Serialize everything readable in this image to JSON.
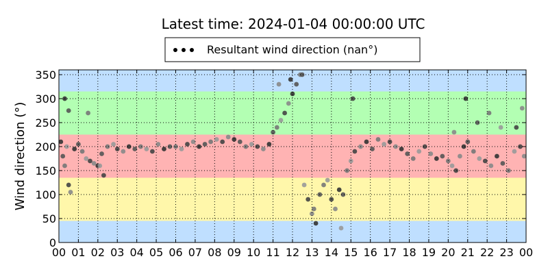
{
  "chart_data": {
    "type": "scatter",
    "title": "Latest time: 2024-01-04 00:00:00 UTC",
    "ylabel": "Wind direction (°)",
    "xlabel": "",
    "xlim": [
      0,
      24
    ],
    "ylim": [
      0,
      360
    ],
    "x_unit": "hour of day (UTC)",
    "x_ticks": [
      0,
      1,
      2,
      3,
      4,
      5,
      6,
      7,
      8,
      9,
      10,
      11,
      12,
      13,
      14,
      15,
      16,
      17,
      18,
      19,
      20,
      21,
      22,
      23,
      24
    ],
    "x_tick_labels": [
      "00",
      "01",
      "02",
      "03",
      "04",
      "05",
      "06",
      "07",
      "08",
      "09",
      "10",
      "11",
      "12",
      "13",
      "14",
      "15",
      "16",
      "17",
      "18",
      "19",
      "20",
      "21",
      "22",
      "23",
      "00"
    ],
    "y_ticks": [
      0,
      50,
      100,
      150,
      200,
      250,
      300,
      350
    ],
    "grid": true,
    "legend": {
      "position": "top-center",
      "entries": [
        "Resultant wind direction (nan°)"
      ]
    },
    "background_bands": [
      {
        "from": 0,
        "to": 45,
        "color": "#bfdfff"
      },
      {
        "from": 45,
        "to": 135,
        "color": "#fff7aa"
      },
      {
        "from": 135,
        "to": 225,
        "color": "#ffb3b3"
      },
      {
        "from": 225,
        "to": 315,
        "color": "#b3ffb3"
      },
      {
        "from": 315,
        "to": 360,
        "color": "#bfdfff"
      }
    ],
    "series": [
      {
        "name": "Resultant wind direction (nan°)",
        "color": "#555555",
        "x": [
          0.1,
          0.2,
          0.3,
          0.4,
          0.5,
          0.6,
          0.8,
          1.0,
          1.2,
          1.4,
          1.6,
          1.8,
          2.0,
          2.2,
          2.5,
          2.8,
          3.0,
          3.3,
          3.6,
          3.9,
          4.2,
          4.5,
          4.8,
          5.1,
          5.4,
          5.7,
          6.0,
          6.3,
          6.6,
          6.9,
          7.2,
          7.5,
          7.8,
          8.1,
          8.4,
          8.7,
          9.0,
          9.3,
          9.6,
          9.9,
          10.2,
          10.5,
          10.8,
          11.0,
          11.2,
          11.4,
          11.6,
          11.8,
          12.0,
          12.2,
          12.4,
          12.6,
          12.8,
          13.0,
          13.2,
          13.4,
          13.6,
          13.8,
          14.0,
          14.2,
          14.4,
          14.6,
          14.8,
          15.0,
          15.2,
          15.5,
          15.8,
          16.1,
          16.4,
          16.7,
          17.0,
          17.3,
          17.6,
          17.9,
          18.2,
          18.5,
          18.8,
          19.1,
          19.4,
          19.7,
          20.0,
          20.2,
          20.4,
          20.6,
          20.8,
          21.0,
          21.3,
          21.6,
          21.9,
          22.2,
          22.5,
          22.8,
          23.1,
          23.4,
          23.7,
          23.9,
          0.3,
          0.5,
          1.5,
          2.1,
          2.3,
          11.3,
          11.9,
          12.5,
          13.1,
          14.5,
          15.1,
          20.3,
          20.9,
          21.5,
          22.1,
          22.7,
          23.5,
          23.8
        ],
        "y": [
          210,
          180,
          160,
          200,
          120,
          105,
          195,
          205,
          190,
          175,
          170,
          165,
          160,
          185,
          200,
          205,
          195,
          190,
          200,
          195,
          200,
          195,
          190,
          205,
          195,
          200,
          200,
          195,
          205,
          210,
          200,
          205,
          210,
          215,
          210,
          220,
          215,
          210,
          200,
          205,
          200,
          195,
          205,
          230,
          240,
          255,
          270,
          290,
          310,
          330,
          350,
          120,
          90,
          60,
          40,
          100,
          120,
          130,
          90,
          70,
          110,
          100,
          150,
          170,
          190,
          200,
          210,
          195,
          215,
          205,
          210,
          200,
          195,
          185,
          175,
          190,
          200,
          185,
          175,
          180,
          170,
          160,
          150,
          180,
          200,
          210,
          190,
          175,
          170,
          160,
          180,
          165,
          150,
          190,
          200,
          180,
          300,
          275,
          270,
          160,
          140,
          330,
          340,
          350,
          70,
          30,
          300,
          230,
          300,
          250,
          270,
          240,
          240,
          280
        ]
      }
    ]
  }
}
